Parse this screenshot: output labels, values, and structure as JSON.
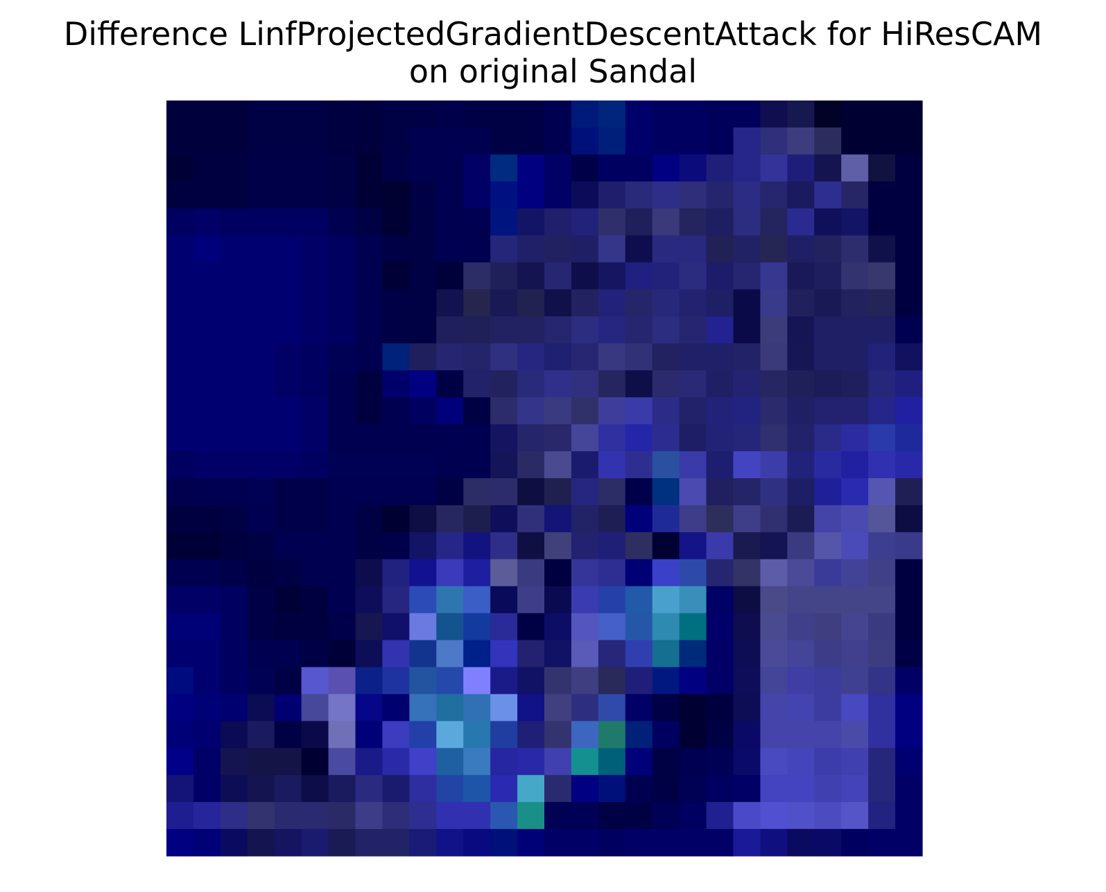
{
  "chart_data": {
    "type": "heatmap",
    "title": "Difference LinfProjectedGradientDescentAttack for HiResCAM on original Sandal",
    "title_lines": [
      "Difference LinfProjectedGradientDescentAttack for HiResCAM",
      "on original Sandal"
    ],
    "axes_visible": false,
    "grid": false,
    "rows": 28,
    "cols": 28,
    "pixels": [
      [
        "#00003d",
        "#00003d",
        "#00003d",
        "#000044",
        "#000044",
        "#000044",
        "#000040",
        "#00003d",
        "#000044",
        "#000044",
        "#00004a",
        "#000044",
        "#000044",
        "#000044",
        "#000050",
        "#001a7a",
        "#00257a",
        "#00006a",
        "#000060",
        "#000060",
        "#00005a",
        "#00005a",
        "#110e50",
        "#161850",
        "#020227",
        "#000033",
        "#000033",
        "#000033"
      ],
      [
        "#00003d",
        "#00003d",
        "#00003d",
        "#000044",
        "#000044",
        "#000044",
        "#000040",
        "#00003d",
        "#000044",
        "#000050",
        "#000050",
        "#000050",
        "#000044",
        "#000044",
        "#000050",
        "#00107a",
        "#001f7a",
        "#00006a",
        "#000060",
        "#000060",
        "#00005a",
        "#25258a",
        "#2f2f7a",
        "#3c3c7f",
        "#2c2d5e",
        "#000033",
        "#000033",
        "#000033"
      ],
      [
        "#000036",
        "#000040",
        "#000040",
        "#000048",
        "#000048",
        "#000048",
        "#000044",
        "#000036",
        "#000048",
        "#000050",
        "#000050",
        "#000066",
        "#002b80",
        "#000080",
        "#000066",
        "#000048",
        "#000060",
        "#000060",
        "#000080",
        "#0b0b7c",
        "#1f1f7a",
        "#25258a",
        "#333399",
        "#1e1e7a",
        "#141450",
        "#5f5fa8",
        "#121241",
        "#000040"
      ],
      [
        "#000040",
        "#000040",
        "#000040",
        "#000048",
        "#000048",
        "#000048",
        "#000044",
        "#000036",
        "#000031",
        "#000044",
        "#000050",
        "#000066",
        "#001080",
        "#000080",
        "#000066",
        "#0b0b5a",
        "#1e1e6c",
        "#2a2a7a",
        "#2e2e88",
        "#2e2e7a",
        "#25256e",
        "#2c2c84",
        "#26266e",
        "#1a1a5e",
        "#2e2e90",
        "#262666",
        "#000040",
        "#000040"
      ],
      [
        "#000060",
        "#000066",
        "#000060",
        "#000060",
        "#000060",
        "#000060",
        "#000050",
        "#000044",
        "#000033",
        "#000044",
        "#000050",
        "#000050",
        "#001480",
        "#141466",
        "#1f1f6c",
        "#22227a",
        "#2f2f6c",
        "#1f1f5c",
        "#3a3a7a",
        "#24245e",
        "#1e1e62",
        "#2c2c80",
        "#24245e",
        "#2a2a90",
        "#0f0f5a",
        "#141466",
        "#000040",
        "#000040"
      ],
      [
        "#000070",
        "#00007a",
        "#000070",
        "#000070",
        "#000070",
        "#000066",
        "#000060",
        "#000050",
        "#000044",
        "#000044",
        "#000050",
        "#000050",
        "#25257a",
        "#202068",
        "#212160",
        "#1f1f66",
        "#35358a",
        "#0e0e4e",
        "#292980",
        "#292980",
        "#212155",
        "#212165",
        "#262655",
        "#1f1f66",
        "#22225e",
        "#2d2d6e",
        "#10104a",
        "#000040"
      ],
      [
        "#000070",
        "#000070",
        "#000070",
        "#000070",
        "#000070",
        "#000066",
        "#000060",
        "#000050",
        "#000036",
        "#000044",
        "#00003a",
        "#2c2c66",
        "#1f1f5a",
        "#141450",
        "#262672",
        "#0e0e4a",
        "#161660",
        "#202080",
        "#22227a",
        "#2b2b80",
        "#1c1c6a",
        "#262670",
        "#373790",
        "#191958",
        "#1e1e5e",
        "#333370",
        "#38386e",
        "#000040"
      ],
      [
        "#000070",
        "#000070",
        "#000070",
        "#000070",
        "#000070",
        "#000066",
        "#000060",
        "#000050",
        "#000044",
        "#000044",
        "#121250",
        "#25254e",
        "#191955",
        "#222250",
        "#10104a",
        "#222260",
        "#22227a",
        "#25256a",
        "#28287a",
        "#222270",
        "#1f1f66",
        "#0a0a48",
        "#3a3a8a",
        "#20205c",
        "#191955",
        "#22225e",
        "#242458",
        "#000040"
      ],
      [
        "#000070",
        "#000070",
        "#000070",
        "#000070",
        "#000070",
        "#000066",
        "#000060",
        "#000050",
        "#000044",
        "#000044",
        "#1f1f5e",
        "#202058",
        "#222262",
        "#222262",
        "#252570",
        "#2c2c80",
        "#262680",
        "#262670",
        "#2c2c80",
        "#262670",
        "#222290",
        "#0a0a48",
        "#3c3c7a",
        "#151555",
        "#1f1f66",
        "#1f1f66",
        "#1f1f66",
        "#000050"
      ],
      [
        "#000070",
        "#000070",
        "#000070",
        "#000070",
        "#000066",
        "#000060",
        "#000055",
        "#000050",
        "#00227a",
        "#1f1f5e",
        "#262670",
        "#24246a",
        "#303080",
        "#262680",
        "#202070",
        "#262672",
        "#383880",
        "#313177",
        "#222260",
        "#202068",
        "#202068",
        "#222266",
        "#3a3a7a",
        "#161654",
        "#1f1f66",
        "#1f1f66",
        "#22227a",
        "#111160"
      ],
      [
        "#000070",
        "#000070",
        "#000070",
        "#000070",
        "#000066",
        "#000060",
        "#000050",
        "#000040",
        "#00006a",
        "#000080",
        "#000044",
        "#22226a",
        "#22225e",
        "#2a2a7a",
        "#30308a",
        "#30307f",
        "#252560",
        "#0e0e48",
        "#2a2a6c",
        "#292978",
        "#1f1f66",
        "#232372",
        "#262662",
        "#1f1f5a",
        "#1c1c58",
        "#1f1f5e",
        "#26267a",
        "#1f1f80"
      ],
      [
        "#000070",
        "#000070",
        "#000070",
        "#000070",
        "#000070",
        "#000066",
        "#000050",
        "#000040",
        "#000050",
        "#000060",
        "#00007a",
        "#000044",
        "#2c2c6a",
        "#34348a",
        "#3a3a80",
        "#30306a",
        "#3e3e9a",
        "#3a3aa8",
        "#2c2c88",
        "#22226a",
        "#22227a",
        "#222280",
        "#2a2a6c",
        "#1f1f66",
        "#222270",
        "#222270",
        "#25258a",
        "#2020a0"
      ],
      [
        "#000070",
        "#000070",
        "#000070",
        "#000070",
        "#000070",
        "#000066",
        "#000050",
        "#000050",
        "#000050",
        "#000050",
        "#000050",
        "#000050",
        "#141460",
        "#25256c",
        "#28286a",
        "#45459a",
        "#3030a0",
        "#2525a8",
        "#2c2c90",
        "#1e1e66",
        "#222277",
        "#25257a",
        "#303070",
        "#22226a",
        "#2a2a88",
        "#2c2ca0",
        "#2a3aa8",
        "#1e2a99"
      ],
      [
        "#000060",
        "#000066",
        "#000066",
        "#000066",
        "#000066",
        "#000060",
        "#000055",
        "#000055",
        "#000055",
        "#000055",
        "#000050",
        "#000050",
        "#141458",
        "#2a2a66",
        "#4a4a90",
        "#1a1a6e",
        "#3333b0",
        "#2e2e90",
        "#2a50a0",
        "#3a3aa8",
        "#1e1e70",
        "#4444c0",
        "#3d3daa",
        "#22227a",
        "#2a2aa0",
        "#2020a0",
        "#3030b0",
        "#2828a8"
      ],
      [
        "#00004e",
        "#000050",
        "#000050",
        "#000055",
        "#00004a",
        "#00004a",
        "#000050",
        "#000050",
        "#000050",
        "#000050",
        "#000044",
        "#2c2c66",
        "#2c2c6a",
        "#0e0e40",
        "#202050",
        "#262680",
        "#2c2c66",
        "#00004a",
        "#003080",
        "#4a4ab0",
        "#202060",
        "#242468",
        "#303080",
        "#1e1e66",
        "#1f1f99",
        "#2a2ab0",
        "#5555b2",
        "#1f1f55"
      ],
      [
        "#000040",
        "#000040",
        "#000044",
        "#000050",
        "#00004a",
        "#00004a",
        "#000050",
        "#000044",
        "#000033",
        "#0e0e44",
        "#262660",
        "#1e1e4e",
        "#0e0e5a",
        "#30307a",
        "#141477",
        "#222266",
        "#1e1e55",
        "#00007a",
        "#1f2a99",
        "#3d3d8a",
        "#2e2e5a",
        "#3d3d88",
        "#303070",
        "#1c1c55",
        "#4444a8",
        "#4a4ab0",
        "#555599",
        "#0d0d44"
      ],
      [
        "#000036",
        "#000036",
        "#000040",
        "#000044",
        "#000050",
        "#000050",
        "#000050",
        "#000044",
        "#00004a",
        "#141466",
        "#262688",
        "#131380",
        "#2e2e88",
        "#0f0f44",
        "#40407a",
        "#222270",
        "#1f1f77",
        "#2e2e60",
        "#000033",
        "#141488",
        "#3a3aaa",
        "#1a1a50",
        "#141455",
        "#3a3a80",
        "#5555aa",
        "#4a4ab8",
        "#3e3e90",
        "#3a3a8a"
      ],
      [
        "#000050",
        "#000050",
        "#00004a",
        "#000040",
        "#000044",
        "#000050",
        "#000050",
        "#0d0d4e",
        "#212180",
        "#121290",
        "#3a3aba",
        "#1e1ea0",
        "#5c5c99",
        "#3a3a80",
        "#000040",
        "#353599",
        "#2e2e90",
        "#000075",
        "#3a40c8",
        "#2d4aaa",
        "#262670",
        "#333366",
        "#5c5ca8",
        "#4a4a99",
        "#3a3a99",
        "#424296",
        "#404088",
        "#000040"
      ],
      [
        "#000066",
        "#000066",
        "#000060",
        "#000044",
        "#000038",
        "#000040",
        "#000050",
        "#0d0d5a",
        "#262680",
        "#2d4bb6",
        "#2f75b0",
        "#3a5ec5",
        "#0a0a5a",
        "#3e3e88",
        "#0a0a50",
        "#3b3bb0",
        "#2540a8",
        "#205aa8",
        "#4aa0cc",
        "#3a8fba",
        "#000066",
        "#0d0d44",
        "#4a4a88",
        "#444488",
        "#444488",
        "#444488",
        "#444488",
        "#000040"
      ],
      [
        "#000077",
        "#000077",
        "#000060",
        "#000044",
        "#000040",
        "#000040",
        "#00004a",
        "#161650",
        "#10106a",
        "#6a7ae0",
        "#13538e",
        "#133a9e",
        "#2a2a99",
        "#000044",
        "#0d0d66",
        "#5555c0",
        "#4560c8",
        "#2557a8",
        "#2e8ab0",
        "#007080",
        "#00006a",
        "#0d0d50",
        "#4a4a90",
        "#40408a",
        "#3e3e80",
        "#444490",
        "#3a3a80",
        "#000040"
      ],
      [
        "#000070",
        "#000070",
        "#000060",
        "#000050",
        "#000050",
        "#000044",
        "#000038",
        "#0d0d58",
        "#3333b0",
        "#12338e",
        "#4e78c8",
        "#00208a",
        "#3333bb",
        "#222270",
        "#111166",
        "#5a5ab8",
        "#26267a",
        "#2f3fb0",
        "#146f90",
        "#002a7a",
        "#000066",
        "#0d0d55",
        "#4a4a99",
        "#444498",
        "#3c3c88",
        "#40408e",
        "#3c3c80",
        "#000044"
      ],
      [
        "#000b80",
        "#000070",
        "#000060",
        "#000055",
        "#000044",
        "#5757d0",
        "#5a50b0",
        "#0c208a",
        "#1e33a0",
        "#2354a0",
        "#2549aa",
        "#8080ff",
        "#1a1a88",
        "#111166",
        "#333370",
        "#3e3e80",
        "#29295a",
        "#1f1f7a",
        "#001880",
        "#000080",
        "#000066",
        "#0d0d5a",
        "#444499",
        "#3e3ea5",
        "#3c3c9c",
        "#404090",
        "#333388",
        "#000066"
      ],
      [
        "#000080",
        "#000077",
        "#000070",
        "#0c0c55",
        "#000070",
        "#48489a",
        "#7575c8",
        "#060688",
        "#00006e",
        "#3572ba",
        "#1f6fa0",
        "#3070b5",
        "#6b90e8",
        "#111188",
        "#404080",
        "#2e2e80",
        "#2f4aaa",
        "#000066",
        "#000044",
        "#000033",
        "#000040",
        "#0d0d55",
        "#4444aa",
        "#4444b0",
        "#3c3ca0",
        "#4848c0",
        "#3030a0",
        "#000080"
      ],
      [
        "#000077",
        "#000070",
        "#0a0a55",
        "#1a1a5e",
        "#000044",
        "#0a0a4a",
        "#7070b8",
        "#000077",
        "#3c3cbf",
        "#2240a8",
        "#5aa8dc",
        "#2878b0",
        "#203ea0",
        "#1f1f77",
        "#333370",
        "#3c66c0",
        "#207a6a",
        "#00207a",
        "#000060",
        "#000033",
        "#000044",
        "#0a0a66",
        "#4444aa",
        "#4444aa",
        "#4444aa",
        "#4a4aa8",
        "#3030a0",
        "#000080"
      ],
      [
        "#000088",
        "#000066",
        "#141450",
        "#141446",
        "#141446",
        "#000033",
        "#4a4aa0",
        "#1a1a88",
        "#2a2aa8",
        "#4040c8",
        "#1f60a0",
        "#3a7abe",
        "#2626a0",
        "#2828a8",
        "#4040b0",
        "#149090",
        "#00607a",
        "#00007a",
        "#000044",
        "#000050",
        "#000055",
        "#0a0a6a",
        "#4a4ac0",
        "#4444bb",
        "#3c3cab",
        "#4040b0",
        "#26267a",
        "#000070"
      ],
      [
        "#141477",
        "#000066",
        "#0d0d55",
        "#141450",
        "#1a1a5e",
        "#0d0d4a",
        "#1a1a5e",
        "#2a2a80",
        "#1a1a6e",
        "#2e2ea0",
        "#2245a5",
        "#1e55a8",
        "#2a2ab0",
        "#46a8c8",
        "#2a2a70",
        "#000080",
        "#00107a",
        "#000050",
        "#000044",
        "#000055",
        "#000060",
        "#000066",
        "#4444c0",
        "#4444c0",
        "#4040b0",
        "#4444b8",
        "#26267a",
        "#000066"
      ],
      [
        "#1e1e90",
        "#26269a",
        "#2e2e88",
        "#333370",
        "#2a2a70",
        "#2a2a70",
        "#2a2a66",
        "#3c3c88",
        "#2e2e78",
        "#2e2e90",
        "#3030b0",
        "#3030b0",
        "#2a58b0",
        "#1a8f88",
        "#000055",
        "#000055",
        "#000044",
        "#000044",
        "#000055",
        "#000060",
        "#202090",
        "#4a4ac8",
        "#5050d0",
        "#5050c8",
        "#4c4cc0",
        "#5555c8",
        "#222280",
        "#000066"
      ],
      [
        "#000080",
        "#000077",
        "#0a0a60",
        "#141450",
        "#141460",
        "#1a1a6e",
        "#1a1a55",
        "#222266",
        "#222266",
        "#1a1a77",
        "#111188",
        "#0a0a80",
        "#00107a",
        "#000077",
        "#000066",
        "#000066",
        "#000060",
        "#000066",
        "#000066",
        "#000066",
        "#000066",
        "#1a1a99",
        "#0f0f80",
        "#0a0a60",
        "#0a0a66",
        "#000060",
        "#000066",
        "#000066"
      ]
    ]
  }
}
